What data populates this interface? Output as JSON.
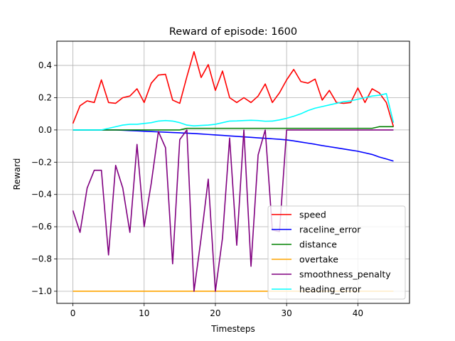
{
  "chart_data": {
    "type": "line",
    "title": "Reward of episode: 1600",
    "xlabel": "Timesteps",
    "ylabel": "Reward",
    "xlim": [
      -2.25,
      47.25
    ],
    "ylim": [
      -1.075,
      0.55
    ],
    "xticks": [
      0,
      10,
      20,
      30,
      40
    ],
    "yticks": [
      -1.0,
      -0.8,
      -0.6,
      -0.4,
      -0.2,
      0.0,
      0.2,
      0.4
    ],
    "ytick_labels": [
      "−1.0",
      "−0.8",
      "−0.6",
      "−0.4",
      "−0.2",
      "0.0",
      "0.2",
      "0.4"
    ],
    "grid": true,
    "legend_position": "lower-right",
    "x": [
      0,
      1,
      2,
      3,
      4,
      5,
      6,
      7,
      8,
      9,
      10,
      11,
      12,
      13,
      14,
      15,
      16,
      17,
      18,
      19,
      20,
      21,
      22,
      23,
      24,
      25,
      26,
      27,
      28,
      29,
      30,
      31,
      32,
      33,
      34,
      35,
      36,
      37,
      38,
      39,
      40,
      41,
      42,
      43,
      44,
      45
    ],
    "series": [
      {
        "name": "speed",
        "color": "#ff0000",
        "values": [
          0.04,
          0.15,
          0.18,
          0.17,
          0.31,
          0.17,
          0.165,
          0.2,
          0.21,
          0.255,
          0.17,
          0.29,
          0.34,
          0.345,
          0.185,
          0.165,
          0.33,
          0.485,
          0.325,
          0.405,
          0.245,
          0.365,
          0.2,
          0.17,
          0.2,
          0.17,
          0.21,
          0.285,
          0.17,
          0.23,
          0.31,
          0.375,
          0.3,
          0.29,
          0.315,
          0.185,
          0.245,
          0.17,
          0.165,
          0.17,
          0.26,
          0.17,
          0.255,
          0.23,
          0.17,
          0.02
        ]
      },
      {
        "name": "raceline_error",
        "color": "#0000ff",
        "values": [
          0.0,
          0.0,
          0.0,
          0.0,
          0.0,
          0.0,
          0.0,
          -0.002,
          -0.004,
          -0.006,
          -0.008,
          -0.01,
          -0.012,
          -0.014,
          -0.016,
          -0.018,
          -0.02,
          -0.022,
          -0.025,
          -0.028,
          -0.031,
          -0.034,
          -0.037,
          -0.04,
          -0.043,
          -0.046,
          -0.049,
          -0.052,
          -0.055,
          -0.058,
          -0.062,
          -0.068,
          -0.075,
          -0.082,
          -0.089,
          -0.097,
          -0.104,
          -0.111,
          -0.118,
          -0.125,
          -0.132,
          -0.142,
          -0.152,
          -0.168,
          -0.18,
          -0.193
        ]
      },
      {
        "name": "distance",
        "color": "#008000",
        "values": [
          0.0,
          0.0,
          0.0,
          0.0,
          0.0,
          0.0,
          0.0,
          0.0,
          0.0,
          0.0,
          0.0,
          0.0,
          0.0,
          0.0,
          0.0,
          0.0,
          0.01,
          0.01,
          0.01,
          0.01,
          0.01,
          0.01,
          0.01,
          0.01,
          0.01,
          0.01,
          0.01,
          0.01,
          0.01,
          0.01,
          0.01,
          0.01,
          0.01,
          0.01,
          0.01,
          0.01,
          0.01,
          0.01,
          0.01,
          0.01,
          0.01,
          0.01,
          0.01,
          0.02,
          0.02,
          0.02
        ]
      },
      {
        "name": "overtake",
        "color": "#ffa500",
        "values": [
          -1.0,
          -1.0,
          -1.0,
          -1.0,
          -1.0,
          -1.0,
          -1.0,
          -1.0,
          -1.0,
          -1.0,
          -1.0,
          -1.0,
          -1.0,
          -1.0,
          -1.0,
          -1.0,
          -1.0,
          -1.0,
          -1.0,
          -1.0,
          -1.0,
          -1.0,
          -1.0,
          -1.0,
          -1.0,
          -1.0,
          -1.0,
          -1.0,
          -1.0,
          -1.0,
          -1.0,
          -1.0,
          -1.0,
          -1.0,
          -1.0,
          -1.0,
          -1.0,
          -1.0,
          -1.0,
          -1.0,
          -1.0,
          -1.0,
          -1.0,
          -1.0,
          -1.0,
          -1.0
        ]
      },
      {
        "name": "smoothness_penalty",
        "color": "#800080",
        "values": [
          -0.5,
          -0.635,
          -0.36,
          -0.25,
          -0.25,
          -0.775,
          -0.22,
          -0.36,
          -0.635,
          -0.09,
          -0.6,
          -0.33,
          -0.01,
          -0.11,
          -0.83,
          -0.06,
          0.0,
          -1.0,
          -0.67,
          -0.305,
          -1.0,
          -0.67,
          -0.05,
          -0.715,
          0.0,
          -0.845,
          -0.155,
          0.0,
          -0.62,
          -0.63,
          0.0,
          0.0,
          0.0,
          0.0,
          0.0,
          0.0,
          0.0,
          0.0,
          0.0,
          0.0,
          0.0,
          0.0,
          0.0,
          0.0,
          0.0,
          0.0
        ]
      },
      {
        "name": "heading_error",
        "color": "#00ffff",
        "values": [
          0.0,
          0.0,
          0.0,
          0.0,
          0.0,
          0.01,
          0.02,
          0.03,
          0.035,
          0.035,
          0.04,
          0.045,
          0.055,
          0.058,
          0.055,
          0.045,
          0.03,
          0.025,
          0.028,
          0.03,
          0.035,
          0.045,
          0.055,
          0.056,
          0.058,
          0.06,
          0.058,
          0.054,
          0.055,
          0.062,
          0.072,
          0.085,
          0.1,
          0.12,
          0.135,
          0.145,
          0.155,
          0.165,
          0.175,
          0.18,
          0.19,
          0.2,
          0.21,
          0.215,
          0.225,
          0.045
        ]
      }
    ]
  }
}
